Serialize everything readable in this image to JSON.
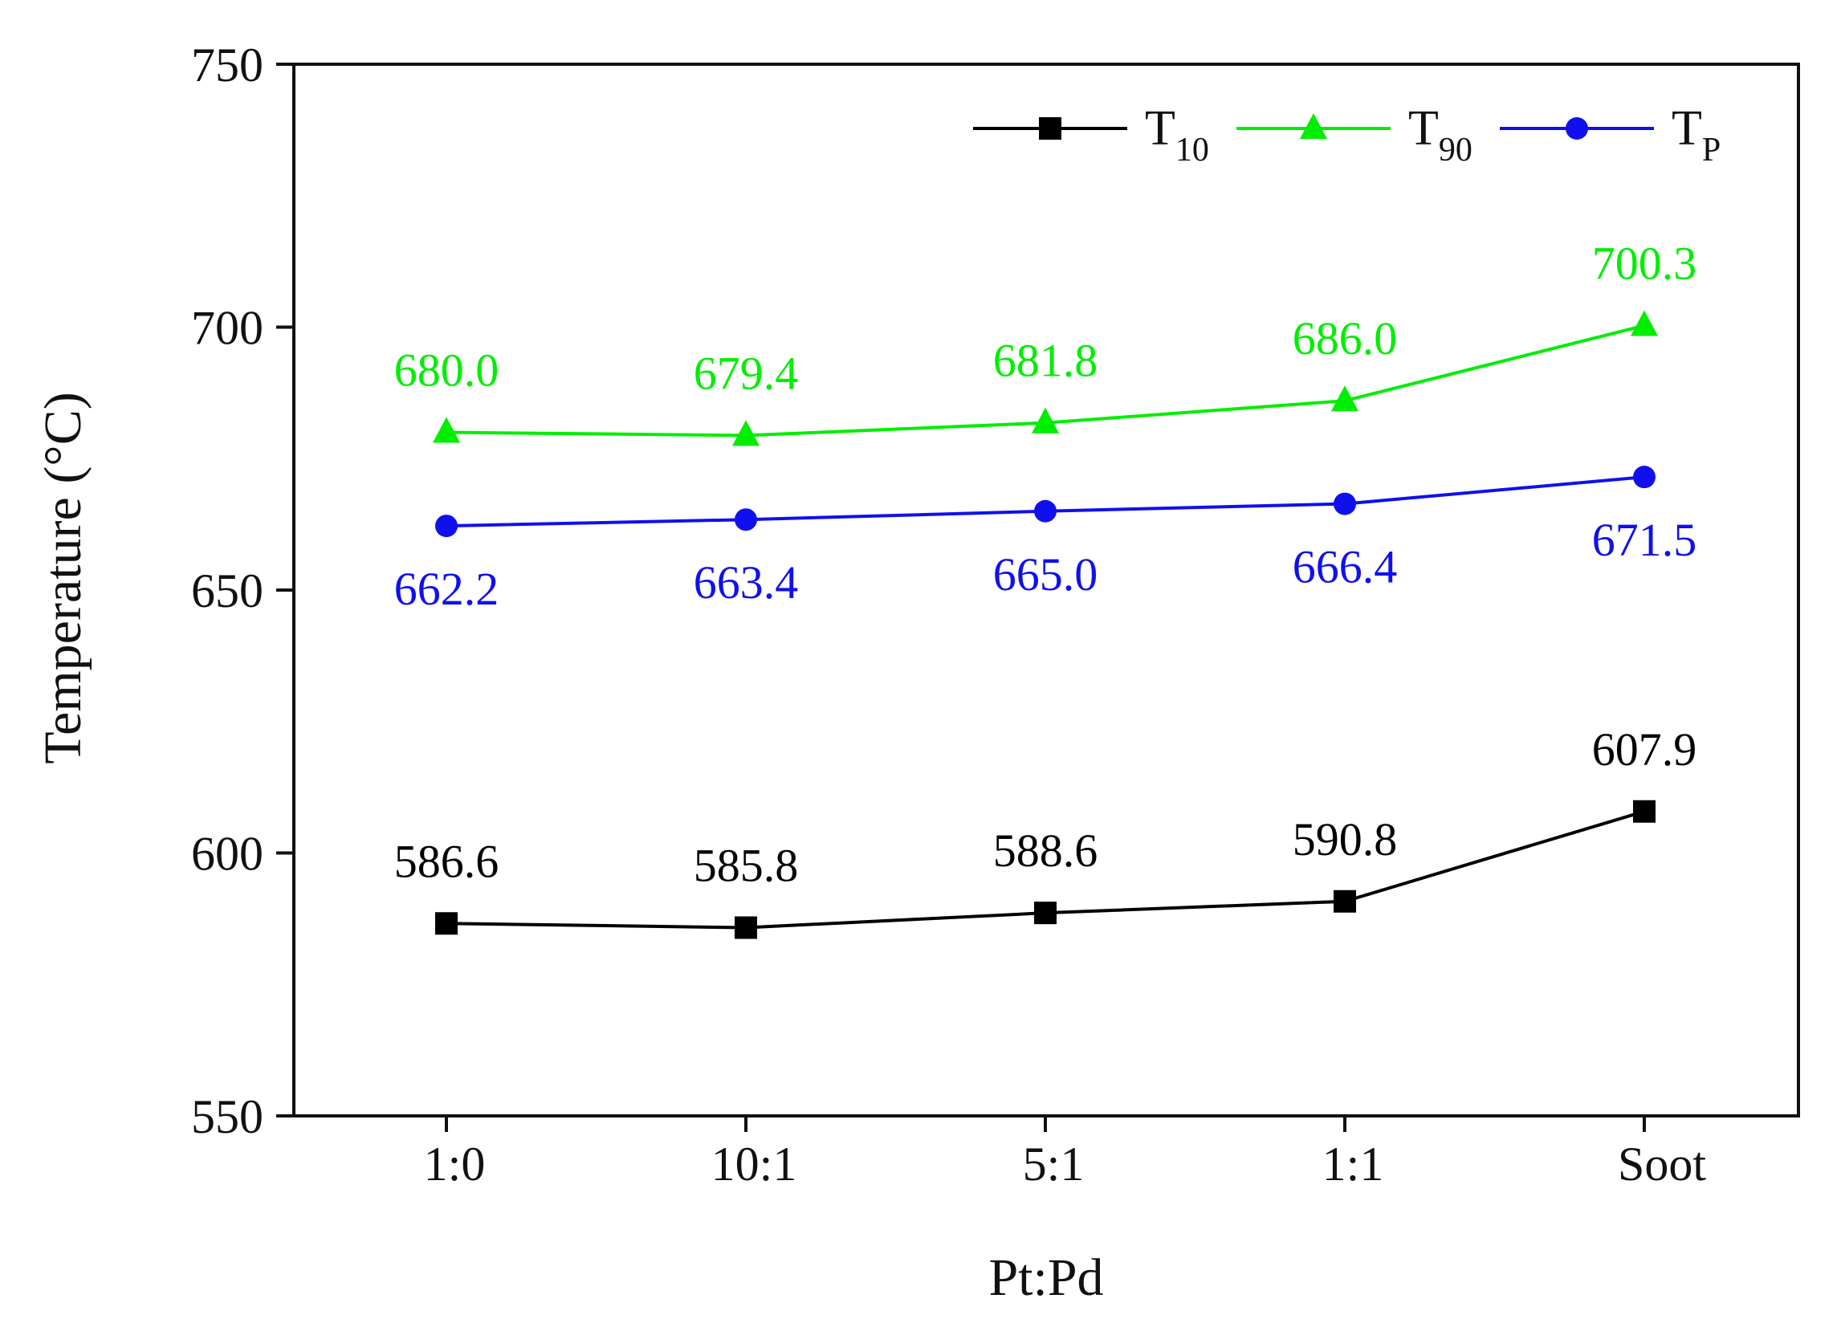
{
  "chart_data": {
    "type": "line",
    "title": "",
    "xlabel": "Pt:Pd",
    "ylabel": "Temperature (°C)",
    "categories": [
      "1:0",
      "10:1",
      "5:1",
      "1:1",
      "Soot"
    ],
    "ylim": [
      550,
      750
    ],
    "yticks": [
      "550",
      "600",
      "650",
      "700",
      "750"
    ],
    "grid": false,
    "legend_position": "top-right",
    "series": [
      {
        "name": "T10",
        "name_base": "T",
        "name_sub": "10",
        "color": "#000000",
        "marker": "square",
        "values": [
          586.6,
          585.8,
          588.6,
          590.8,
          607.9
        ],
        "labels": [
          "586.6",
          "585.8",
          "588.6",
          "590.8",
          "607.9"
        ],
        "label_position": "above"
      },
      {
        "name": "T90",
        "name_base": "T",
        "name_sub": "90",
        "color": "#00ee00",
        "marker": "triangle",
        "values": [
          680.0,
          679.4,
          681.8,
          686.0,
          700.3
        ],
        "labels": [
          "680.0",
          "679.4",
          "681.8",
          "686.0",
          "700.3"
        ],
        "label_position": "above"
      },
      {
        "name": "TP",
        "name_base": "T",
        "name_sub": "P",
        "color": "#1010ee",
        "marker": "circle",
        "values": [
          662.2,
          663.4,
          665.0,
          666.4,
          671.5
        ],
        "labels": [
          "662.2",
          "663.4",
          "665.0",
          "666.4",
          "671.5"
        ],
        "label_position": "below"
      }
    ]
  }
}
